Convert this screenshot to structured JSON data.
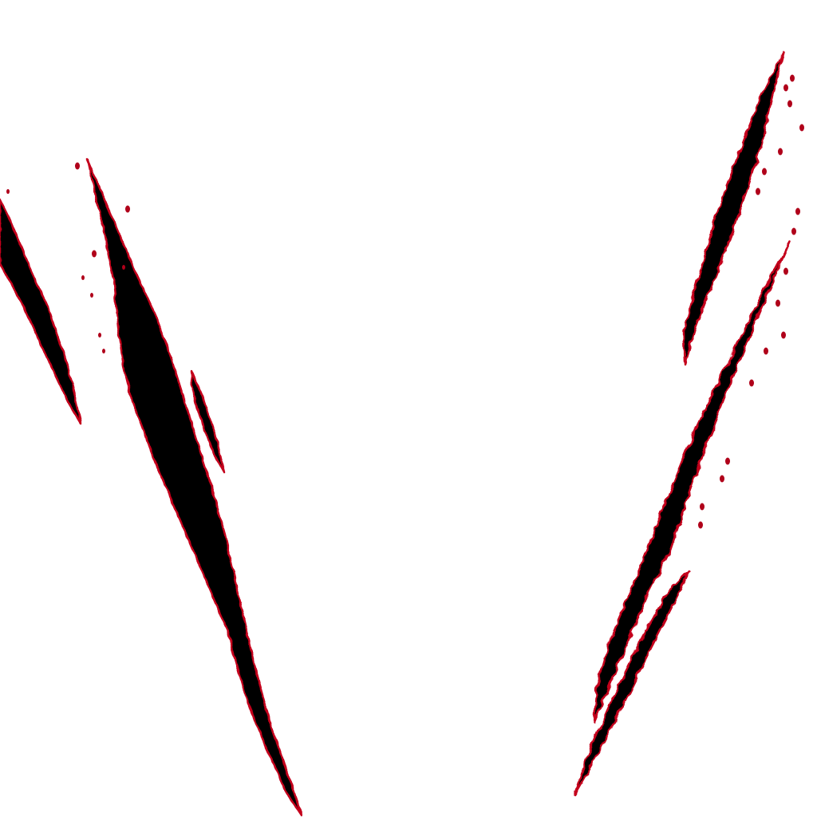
{
  "artwork": {
    "subject": "claw-scratch-marks",
    "colors": {
      "background": "#ffffff",
      "fill": "#050000",
      "edge": "#c4001c",
      "spatter": "#b0001a"
    }
  }
}
